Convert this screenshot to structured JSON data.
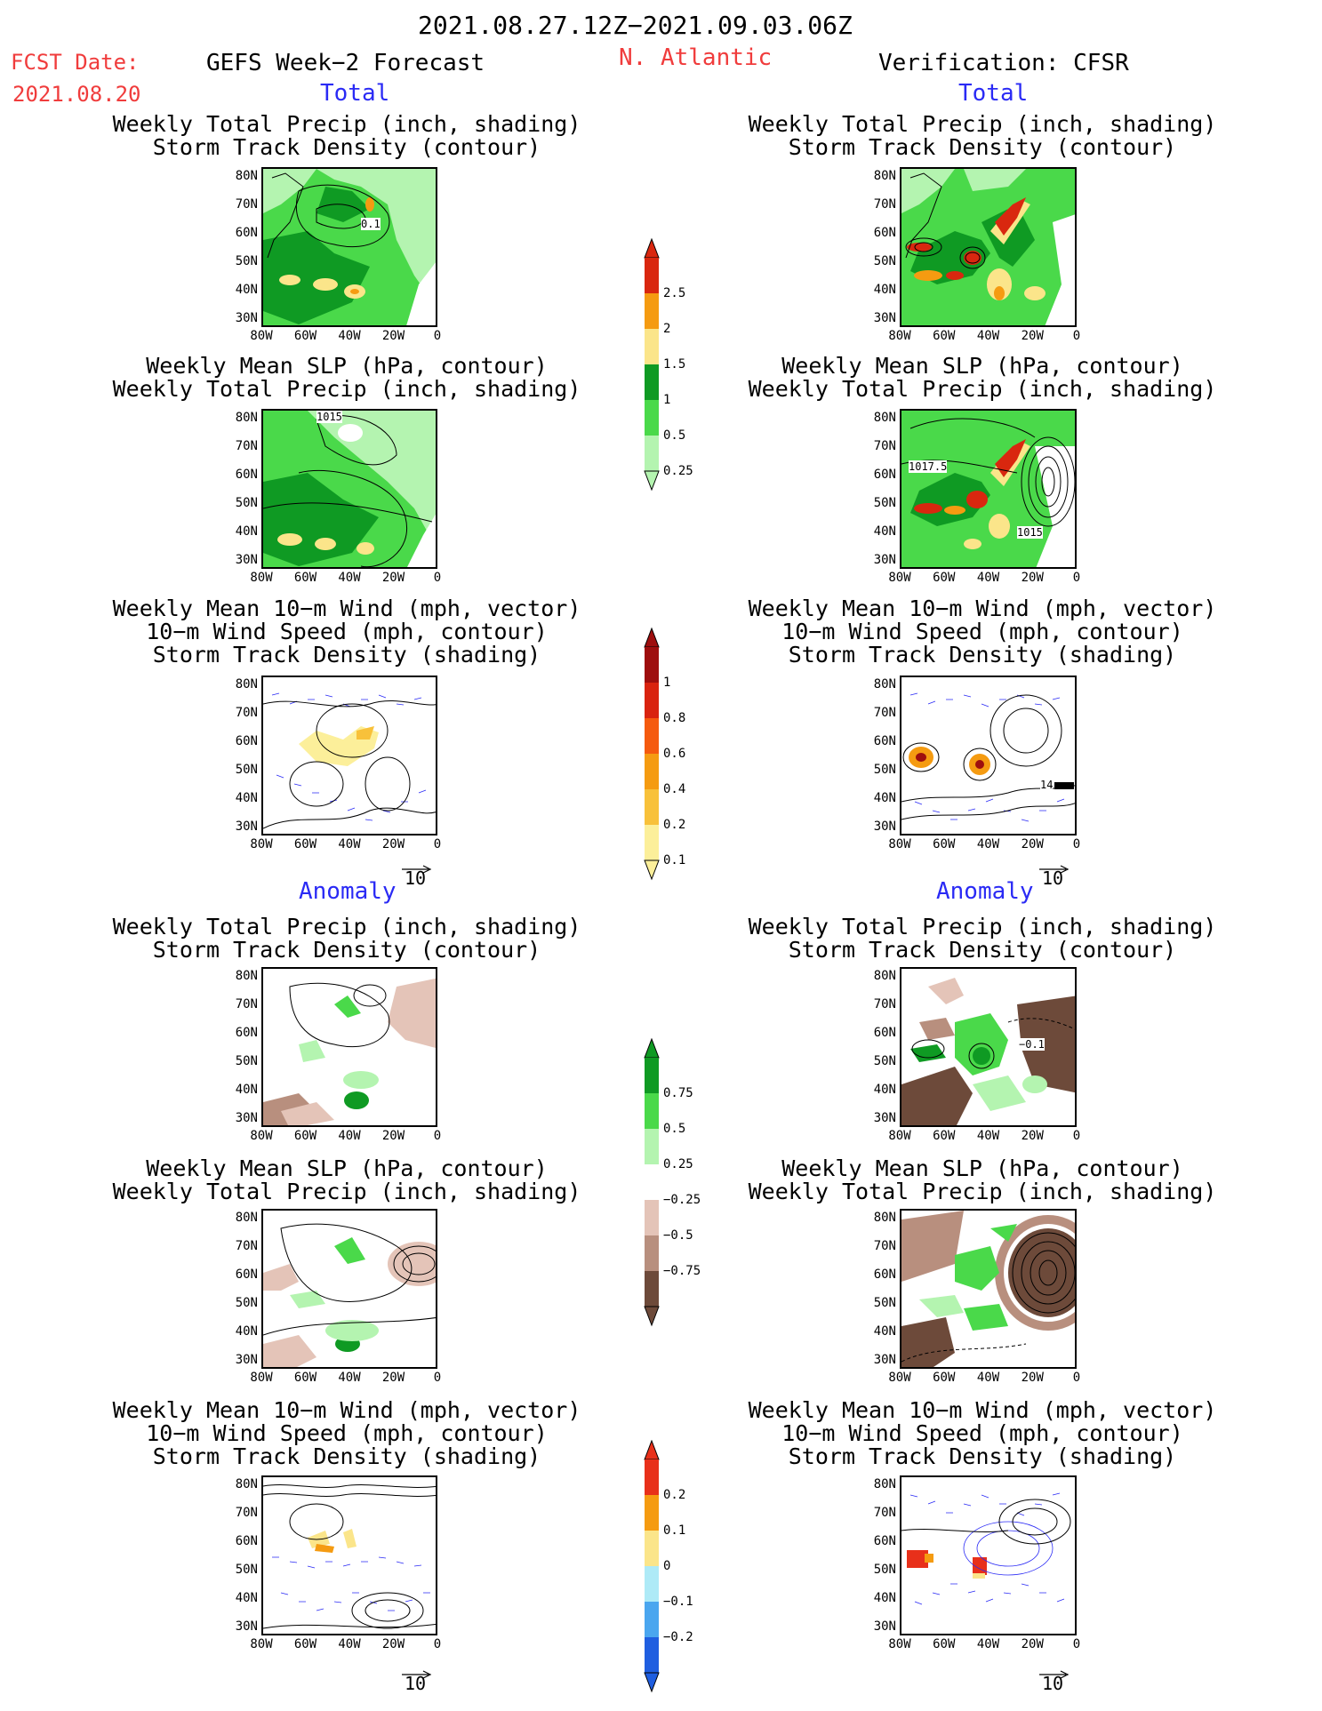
{
  "header": {
    "date_range": "2021.08.27.12Z−2021.09.03.06Z",
    "fcst_label": "FCST Date:",
    "fcst_date": "2021.08.20",
    "left_title": "GEFS Week−2 Forecast",
    "region": "N. Atlantic",
    "right_title": "Verification: CFSR"
  },
  "sections": {
    "total": "Total",
    "anomaly": "Anomaly"
  },
  "titles": {
    "precip_track": [
      "Weekly Total Precip (inch, shading)",
      "Storm Track Density (contour)"
    ],
    "slp_precip": [
      "Weekly Mean SLP (hPa, contour)",
      "Weekly Total Precip (inch, shading)"
    ],
    "wind": [
      "Weekly Mean 10−m Wind (mph, vector)",
      "10−m Wind Speed (mph, contour)",
      "Storm Track Density (shading)"
    ]
  },
  "axes": {
    "lat_labels": [
      "80N",
      "70N",
      "60N",
      "50N",
      "40N",
      "30N"
    ],
    "lon_labels": [
      "80W",
      "60W",
      "40W",
      "20W",
      "0"
    ]
  },
  "vector_ref": "10",
  "contour_labels": {
    "fcst_precip_track": "0.1",
    "fcst_slp": "1015",
    "verif_slp_a": "1017.5",
    "verif_slp_b": "1015",
    "verif_wind_a": "14",
    "verif_anom_precip": "−0.1"
  },
  "colorbars": {
    "precip_total": {
      "labels": [
        "2.5",
        "2",
        "1.5",
        "1",
        "0.5",
        "0.25"
      ],
      "colors": [
        "#d9270f",
        "#f59b11",
        "#fbe58a",
        "#0f9a23",
        "#4ad94a",
        "#b4f4b0"
      ]
    },
    "track_total": {
      "labels": [
        "1",
        "0.8",
        "0.6",
        "0.4",
        "0.2",
        "0.1"
      ],
      "colors": [
        "#9e0e0e",
        "#d9230f",
        "#f55a0e",
        "#f59b11",
        "#f8c13a",
        "#fcef9a"
      ]
    },
    "precip_anom": {
      "labels": [
        "0.75",
        "0.5",
        "0.25",
        "−0.25",
        "−0.5",
        "−0.75"
      ],
      "colors": [
        "#0f9a23",
        "#4ad94a",
        "#b4f4b0",
        "#ffffff",
        "#e4c4b8",
        "#b88f7e",
        "#6d4a3a"
      ]
    },
    "track_anom": {
      "labels": [
        "0.2",
        "0.1",
        "0",
        "−0.1",
        "−0.2"
      ],
      "colors": [
        "#e8301a",
        "#f59b11",
        "#fbe58a",
        "#aeeaf7",
        "#4aa6ef",
        "#1f5ee0"
      ]
    }
  }
}
